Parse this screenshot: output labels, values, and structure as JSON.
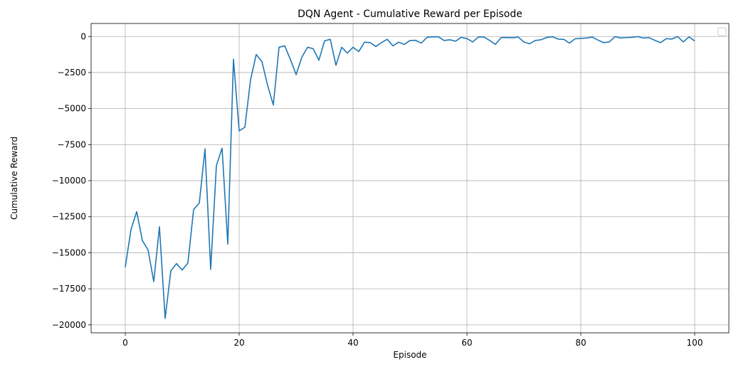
{
  "chart_data": {
    "type": "line",
    "title": "DQN Agent - Cumulative Reward per Episode",
    "xlabel": "Episode",
    "ylabel": "Cumulative Reward",
    "xlim": [
      -6,
      106
    ],
    "ylim": [
      -20550,
      900
    ],
    "xticks": [
      0,
      20,
      40,
      60,
      80,
      100
    ],
    "yticks": [
      -20000,
      -17500,
      -15000,
      -12500,
      -10000,
      -7500,
      -5000,
      -2500,
      0
    ],
    "grid": true,
    "legend": "top-right, empty",
    "series": [
      {
        "color": "#1f77b4",
        "x": [
          0,
          1,
          2,
          3,
          4,
          5,
          6,
          7,
          8,
          9,
          10,
          11,
          12,
          13,
          14,
          15,
          16,
          17,
          18,
          19,
          20,
          21,
          22,
          23,
          24,
          25,
          26,
          27,
          28,
          29,
          30,
          31,
          32,
          33,
          34,
          35,
          36,
          37,
          38,
          39,
          40,
          41,
          42,
          43,
          44,
          45,
          46,
          47,
          48,
          49,
          50,
          51,
          52,
          53,
          54,
          55,
          56,
          57,
          58,
          59,
          60,
          61,
          62,
          63,
          64,
          65,
          66,
          67,
          68,
          69,
          70,
          71,
          72,
          73,
          74,
          75,
          76,
          77,
          78,
          79,
          80,
          81,
          82,
          83,
          84,
          85,
          86,
          87,
          88,
          89,
          90,
          91,
          92,
          93,
          94,
          95,
          96,
          97,
          98,
          99,
          100
        ],
        "values": [
          -16000,
          -13400,
          -12150,
          -14150,
          -14800,
          -17000,
          -13200,
          -19550,
          -16250,
          -15750,
          -16200,
          -15700,
          -12000,
          -11550,
          -7800,
          -16150,
          -8950,
          -7750,
          -14400,
          -1580,
          -6550,
          -6300,
          -3000,
          -1250,
          -1750,
          -3400,
          -4750,
          -750,
          -650,
          -1600,
          -2650,
          -1450,
          -750,
          -850,
          -1650,
          -300,
          -200,
          -2000,
          -750,
          -1150,
          -750,
          -1050,
          -400,
          -420,
          -700,
          -420,
          -200,
          -650,
          -400,
          -550,
          -280,
          -270,
          -460,
          -60,
          -20,
          -30,
          -280,
          -230,
          -330,
          -60,
          -150,
          -380,
          -40,
          -40,
          -280,
          -550,
          -80,
          -70,
          -90,
          -40,
          -380,
          -510,
          -280,
          -230,
          -70,
          -20,
          -180,
          -200,
          -460,
          -160,
          -140,
          -110,
          -40,
          -250,
          -430,
          -380,
          -10,
          -110,
          -80,
          -60,
          -10,
          -110,
          -90,
          -270,
          -430,
          -150,
          -180,
          -10,
          -380,
          -30,
          -310
        ]
      }
    ]
  }
}
